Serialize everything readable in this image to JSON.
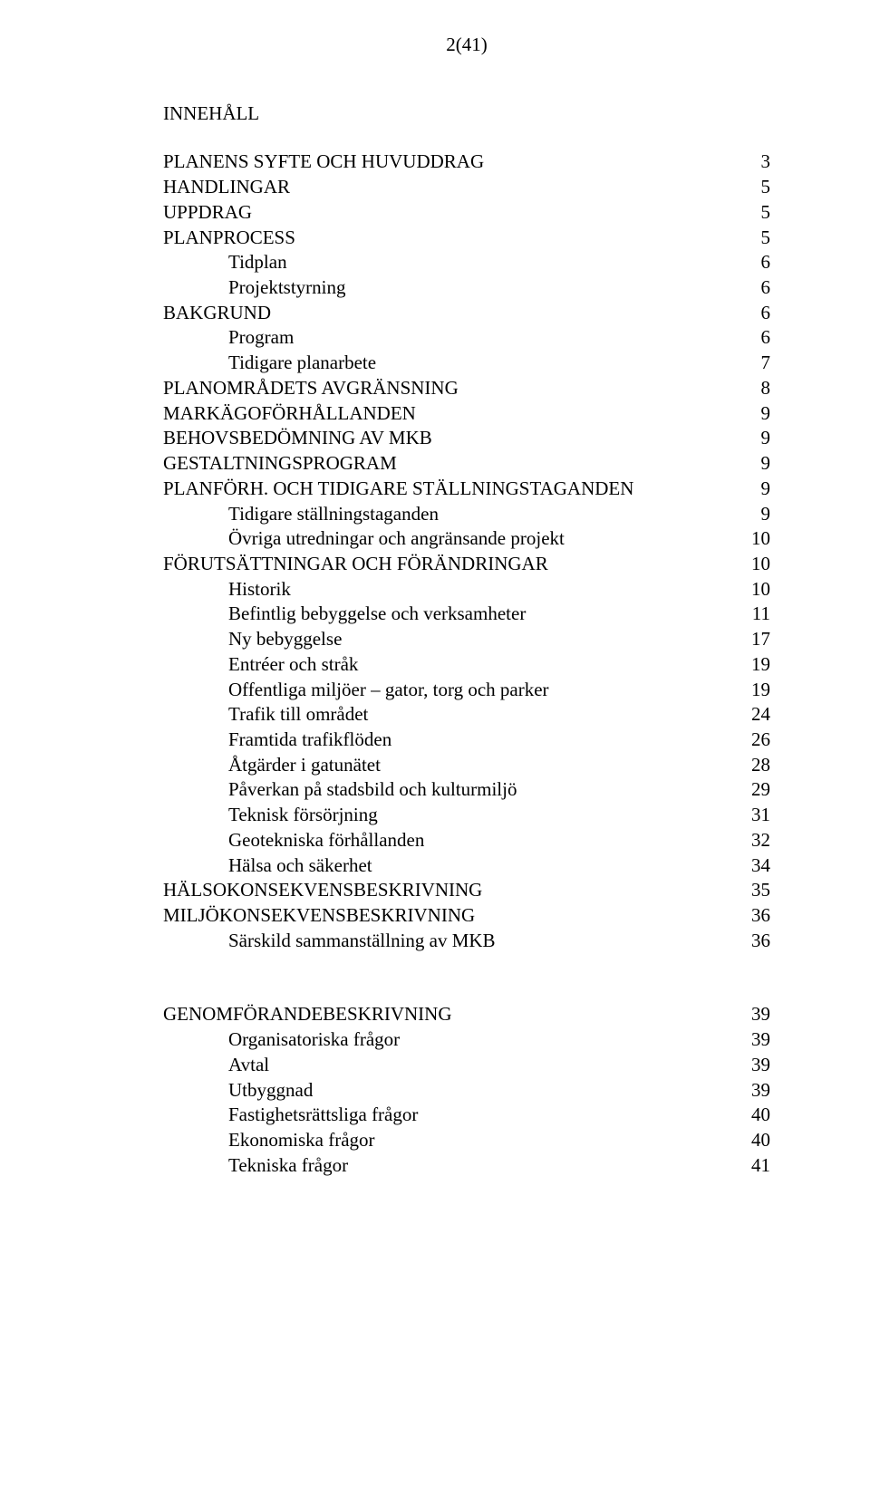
{
  "page_number_label": "2(41)",
  "heading": "INNEHÅLL",
  "toc": [
    {
      "label": "PLANENS SYFTE OCH HUVUDDRAG",
      "page": "3",
      "indent": 0
    },
    {
      "label": "HANDLINGAR",
      "page": "5",
      "indent": 0
    },
    {
      "label": "UPPDRAG",
      "page": "5",
      "indent": 0
    },
    {
      "label": "PLANPROCESS",
      "page": "5",
      "indent": 0
    },
    {
      "label": "Tidplan",
      "page": "6",
      "indent": 1
    },
    {
      "label": "Projektstyrning",
      "page": "6",
      "indent": 1
    },
    {
      "label": "BAKGRUND",
      "page": "6",
      "indent": 0
    },
    {
      "label": "Program",
      "page": "6",
      "indent": 1
    },
    {
      "label": "Tidigare planarbete",
      "page": "7",
      "indent": 1
    },
    {
      "label": "PLANOMRÅDETS AVGRÄNSNING",
      "page": "8",
      "indent": 0
    },
    {
      "label": "MARKÄGOFÖRHÅLLANDEN",
      "page": "9",
      "indent": 0
    },
    {
      "label": "BEHOVSBEDÖMNING AV MKB",
      "page": "9",
      "indent": 0
    },
    {
      "label": "GESTALTNINGSPROGRAM",
      "page": "9",
      "indent": 0
    },
    {
      "label": "PLANFÖRH. OCH TIDIGARE STÄLLNINGSTAGANDEN",
      "page": "9",
      "indent": 0
    },
    {
      "label": "Tidigare ställningstaganden",
      "page": "9",
      "indent": 1
    },
    {
      "label": "Övriga utredningar och angränsande projekt",
      "page": "10",
      "indent": 1
    },
    {
      "label": "FÖRUTSÄTTNINGAR OCH FÖRÄNDRINGAR",
      "page": "10",
      "indent": 0
    },
    {
      "label": "Historik",
      "page": "10",
      "indent": 1
    },
    {
      "label": "Befintlig bebyggelse och verksamheter",
      "page": "11",
      "indent": 1
    },
    {
      "label": "Ny bebyggelse",
      "page": "17",
      "indent": 1
    },
    {
      "label": "Entréer och stråk",
      "page": "19",
      "indent": 1
    },
    {
      "label": "Offentliga miljöer – gator, torg och parker",
      "page": "19",
      "indent": 1
    },
    {
      "label": "Trafik till området",
      "page": "24",
      "indent": 1
    },
    {
      "label": "Framtida trafikflöden",
      "page": "26",
      "indent": 1
    },
    {
      "label": "Åtgärder i gatunätet",
      "page": "28",
      "indent": 1
    },
    {
      "label": "Påverkan på stadsbild och kulturmiljö",
      "page": "29",
      "indent": 1
    },
    {
      "label": "Teknisk försörjning",
      "page": "31",
      "indent": 1
    },
    {
      "label": "Geotekniska förhållanden",
      "page": "32",
      "indent": 1
    },
    {
      "label": "Hälsa och säkerhet",
      "page": "34",
      "indent": 1
    },
    {
      "label": "HÄLSOKONSEKVENSBESKRIVNING",
      "page": "35",
      "indent": 0
    },
    {
      "label": "MILJÖKONSEKVENSBESKRIVNING",
      "page": "36",
      "indent": 0
    },
    {
      "label": "Särskild sammanställning av MKB",
      "page": "36",
      "indent": 1
    }
  ],
  "toc2": [
    {
      "label": "GENOMFÖRANDEBESKRIVNING",
      "page": "39",
      "indent": 0
    },
    {
      "label": "Organisatoriska frågor",
      "page": "39",
      "indent": 1
    },
    {
      "label": "Avtal",
      "page": "39",
      "indent": 1
    },
    {
      "label": "Utbyggnad",
      "page": "39",
      "indent": 1
    },
    {
      "label": "Fastighetsrättsliga frågor",
      "page": "40",
      "indent": 1
    },
    {
      "label": "Ekonomiska frågor",
      "page": "40",
      "indent": 1
    },
    {
      "label": "Tekniska frågor",
      "page": "41",
      "indent": 1
    }
  ],
  "colors": {
    "text": "#000000",
    "background": "#ffffff"
  },
  "typography": {
    "font_family": "Times New Roman",
    "body_fontsize_pt": 16
  }
}
